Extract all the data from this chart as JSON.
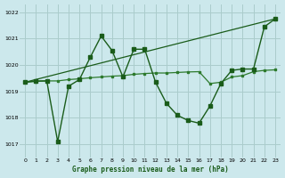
{
  "title": "Graphe pression niveau de la mer (hPa)",
  "bg_color": "#cce8ec",
  "grid_color": "#aacccc",
  "line_color1": "#1a5c1a",
  "line_color2": "#2d7a2d",
  "xlim": [
    -0.5,
    23.5
  ],
  "ylim": [
    1016.5,
    1022.3
  ],
  "yticks": [
    1017,
    1018,
    1019,
    1020,
    1021,
    1022
  ],
  "xticks": [
    0,
    1,
    2,
    3,
    4,
    5,
    6,
    7,
    8,
    9,
    10,
    11,
    12,
    13,
    14,
    15,
    16,
    17,
    18,
    19,
    20,
    21,
    22,
    23
  ],
  "series1_x": [
    0,
    1,
    2,
    3,
    4,
    5,
    6,
    7,
    8,
    9,
    10,
    11,
    12,
    13,
    14,
    15,
    16,
    17,
    18,
    19,
    20,
    21,
    22,
    23
  ],
  "series1_y": [
    1019.35,
    1019.4,
    1019.4,
    1017.1,
    1019.2,
    1019.45,
    1020.3,
    1021.1,
    1020.55,
    1019.55,
    1020.6,
    1020.6,
    1019.35,
    1018.55,
    1018.1,
    1017.9,
    1017.8,
    1018.45,
    1019.3,
    1019.8,
    1019.85,
    1019.85,
    1021.45,
    1021.75
  ],
  "series2_x": [
    0,
    1,
    2,
    3,
    4,
    5,
    6,
    7,
    8,
    9,
    10,
    11,
    12,
    13,
    14,
    15,
    16,
    17,
    18,
    19,
    20,
    21,
    22,
    23
  ],
  "series2_y": [
    1019.35,
    1019.38,
    1019.4,
    1019.4,
    1019.45,
    1019.48,
    1019.52,
    1019.55,
    1019.58,
    1019.6,
    1019.65,
    1019.68,
    1019.7,
    1019.7,
    1019.72,
    1019.74,
    1019.75,
    1019.3,
    1019.35,
    1019.55,
    1019.6,
    1019.75,
    1019.8,
    1019.82
  ],
  "series3_x": [
    0,
    23
  ],
  "series3_y": [
    1019.35,
    1021.75
  ]
}
